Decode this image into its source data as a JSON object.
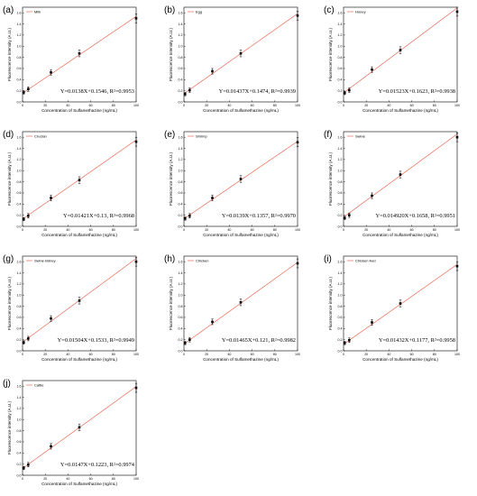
{
  "colors": {
    "fit_line": "#e8563f",
    "points": "#000000",
    "background": "#ffffff"
  },
  "chart_data": [
    {
      "type": "scatter",
      "letter": "(a)",
      "legend": "Milk",
      "xlabel": "Concentration of Sulfamethazine (ng/mL)",
      "ylabel": "Fluorescence intensity (A.U.)",
      "xlim": [
        0,
        100
      ],
      "ylim": [
        0,
        1.7
      ],
      "xticks": [
        "0",
        "20",
        "40",
        "60",
        "80",
        "100"
      ],
      "yticks": [
        "0.0",
        "0.2",
        "0.4",
        "0.6",
        "0.8",
        "1.0",
        "1.2",
        "1.4",
        "1.6"
      ],
      "x": [
        1,
        5,
        25,
        50,
        100
      ],
      "y": [
        0.17,
        0.23,
        0.53,
        0.87,
        1.5
      ],
      "err": [
        0.03,
        0.04,
        0.05,
        0.06,
        0.08
      ],
      "fit": {
        "slope": 0.0138,
        "intercept": 0.1546
      },
      "equation": "Y=0.0138X+0.1546, R²=0.9953",
      "grid": false,
      "legend_position": "top-left"
    },
    {
      "type": "scatter",
      "letter": "(b)",
      "legend": "Egg",
      "xlabel": "Concentration of Sulfamethazine (ng/mL)",
      "ylabel": "Fluorescence intensity (A.U.)",
      "xlim": [
        0,
        100
      ],
      "ylim": [
        0,
        1.7
      ],
      "xticks": [
        "0",
        "20",
        "40",
        "60",
        "80",
        "100"
      ],
      "yticks": [
        "0.0",
        "0.2",
        "0.4",
        "0.6",
        "0.8",
        "1.0",
        "1.2",
        "1.4",
        "1.6"
      ],
      "x": [
        1,
        5,
        25,
        50,
        100
      ],
      "y": [
        0.14,
        0.21,
        0.55,
        0.87,
        1.55
      ],
      "err": [
        0.03,
        0.04,
        0.05,
        0.06,
        0.08
      ],
      "fit": {
        "slope": 0.01437,
        "intercept": 0.1474
      },
      "equation": "Y=0.01437X+0.1474, R²=0.9939",
      "grid": false,
      "legend_position": "top-left"
    },
    {
      "type": "scatter",
      "letter": "(c)",
      "legend": "Honey",
      "xlabel": "Concentration of Sulfamethazine (ng/mL)",
      "ylabel": "Fluorescence intensity (A.U.)",
      "xlim": [
        0,
        100
      ],
      "ylim": [
        0,
        1.7
      ],
      "xticks": [
        "0",
        "20",
        "40",
        "60",
        "80",
        "100"
      ],
      "yticks": [
        "0.0",
        "0.2",
        "0.4",
        "0.6",
        "0.8",
        "1.0",
        "1.2",
        "1.4",
        "1.6"
      ],
      "x": [
        1,
        5,
        25,
        50,
        100
      ],
      "y": [
        0.16,
        0.21,
        0.58,
        0.93,
        1.62
      ],
      "err": [
        0.03,
        0.04,
        0.05,
        0.06,
        0.08
      ],
      "fit": {
        "slope": 0.01523,
        "intercept": 0.1623
      },
      "equation": "Y=0.01523X+0.1623, R²=0.9938",
      "grid": false,
      "legend_position": "top-left"
    },
    {
      "type": "scatter",
      "letter": "(d)",
      "legend": "Crucian",
      "xlabel": "Concentration of Sulfamethazine (ng/mL)",
      "ylabel": "Fluorescence intensity (A.U.)",
      "xlim": [
        0,
        100
      ],
      "ylim": [
        0,
        1.7
      ],
      "xticks": [
        "0",
        "20",
        "40",
        "60",
        "80",
        "100"
      ],
      "yticks": [
        "0.0",
        "0.2",
        "0.4",
        "0.6",
        "0.8",
        "1.0",
        "1.2",
        "1.4",
        "1.6"
      ],
      "x": [
        1,
        5,
        25,
        50,
        100
      ],
      "y": [
        0.13,
        0.19,
        0.51,
        0.83,
        1.52
      ],
      "err": [
        0.03,
        0.04,
        0.05,
        0.06,
        0.08
      ],
      "fit": {
        "slope": 0.01421,
        "intercept": 0.13
      },
      "equation": "Y=0.01421X+0.13, R²=0.9968",
      "grid": false,
      "legend_position": "top-left"
    },
    {
      "type": "scatter",
      "letter": "(e)",
      "legend": "Shrimp",
      "xlabel": "Concentration of Sulfamethazine (ng/mL)",
      "ylabel": "Fluorescence intensity (A.U.)",
      "xlim": [
        0,
        100
      ],
      "ylim": [
        0,
        1.7
      ],
      "xticks": [
        "0",
        "20",
        "40",
        "60",
        "80",
        "100"
      ],
      "yticks": [
        "0.0",
        "0.2",
        "0.4",
        "0.6",
        "0.8",
        "1.0",
        "1.2",
        "1.4",
        "1.6"
      ],
      "x": [
        1,
        5,
        25,
        50,
        100
      ],
      "y": [
        0.14,
        0.19,
        0.51,
        0.85,
        1.51
      ],
      "err": [
        0.03,
        0.04,
        0.05,
        0.06,
        0.08
      ],
      "fit": {
        "slope": 0.0139,
        "intercept": 0.1357
      },
      "equation": "Y=0.0139X+0.1357, R²=0.9970",
      "grid": false,
      "legend_position": "top-left"
    },
    {
      "type": "scatter",
      "letter": "(f)",
      "legend": "Swine",
      "xlabel": "Concentration of Sulfamethazine (ng/mL)",
      "ylabel": "Fluorescence intensity (A.U.)",
      "xlim": [
        0,
        100
      ],
      "ylim": [
        0,
        1.7
      ],
      "xticks": [
        "0",
        "20",
        "40",
        "60",
        "80",
        "100"
      ],
      "yticks": [
        "0.0",
        "0.2",
        "0.4",
        "0.6",
        "0.8",
        "1.0",
        "1.2",
        "1.4",
        "1.6"
      ],
      "x": [
        1,
        5,
        25,
        50,
        100
      ],
      "y": [
        0.15,
        0.2,
        0.55,
        0.93,
        1.6
      ],
      "err": [
        0.03,
        0.04,
        0.05,
        0.06,
        0.08
      ],
      "fit": {
        "slope": 0.01492,
        "intercept": 0.1658
      },
      "equation": "Y=0.014920X+0.1658, R²=0.9951",
      "grid": false,
      "legend_position": "top-left"
    },
    {
      "type": "scatter",
      "letter": "(g)",
      "legend": "Swine kidney",
      "xlabel": "Concentration of Sulfamethazine (ng/mL)",
      "ylabel": "Fluorescence intensity (A.U.)",
      "xlim": [
        0,
        100
      ],
      "ylim": [
        0,
        1.7
      ],
      "xticks": [
        "0",
        "20",
        "40",
        "60",
        "80",
        "100"
      ],
      "yticks": [
        "0.0",
        "0.2",
        "0.4",
        "0.6",
        "0.8",
        "1.0",
        "1.2",
        "1.4",
        "1.6"
      ],
      "x": [
        1,
        5,
        25,
        50,
        100
      ],
      "y": [
        0.15,
        0.22,
        0.58,
        0.9,
        1.6
      ],
      "err": [
        0.03,
        0.04,
        0.05,
        0.06,
        0.08
      ],
      "fit": {
        "slope": 0.01504,
        "intercept": 0.1533
      },
      "equation": "Y=0.01504X+0.1533, R²=0.9949",
      "grid": false,
      "legend_position": "top-left"
    },
    {
      "type": "scatter",
      "letter": "(h)",
      "legend": "Chicken",
      "xlabel": "Concentration of Sulfamethazine (ng/mL)",
      "ylabel": "Fluorescence intensity (A.U.)",
      "xlim": [
        0,
        100
      ],
      "ylim": [
        0,
        1.7
      ],
      "xticks": [
        "0",
        "20",
        "40",
        "60",
        "80",
        "100"
      ],
      "yticks": [
        "0.0",
        "0.2",
        "0.4",
        "0.6",
        "0.8",
        "1.0",
        "1.2",
        "1.4",
        "1.6"
      ],
      "x": [
        1,
        5,
        25,
        50,
        100
      ],
      "y": [
        0.14,
        0.2,
        0.52,
        0.87,
        1.57
      ],
      "err": [
        0.03,
        0.04,
        0.05,
        0.06,
        0.08
      ],
      "fit": {
        "slope": 0.01465,
        "intercept": 0.121
      },
      "equation": "Y=0.01465X+0.121, R²=0.9982",
      "grid": false,
      "legend_position": "top-left"
    },
    {
      "type": "scatter",
      "letter": "(i)",
      "legend": "Chicken liver",
      "xlabel": "Concentration of Sulfamethazine (ng/mL)",
      "ylabel": "Fluorescence intensity (A.U.)",
      "xlim": [
        0,
        100
      ],
      "ylim": [
        0,
        1.7
      ],
      "xticks": [
        "0",
        "20",
        "40",
        "60",
        "80",
        "100"
      ],
      "yticks": [
        "0.0",
        "0.2",
        "0.4",
        "0.6",
        "0.8",
        "1.0",
        "1.2",
        "1.4",
        "1.6"
      ],
      "x": [
        1,
        5,
        25,
        50,
        100
      ],
      "y": [
        0.14,
        0.19,
        0.51,
        0.85,
        1.52
      ],
      "err": [
        0.03,
        0.04,
        0.05,
        0.06,
        0.08
      ],
      "fit": {
        "slope": 0.01432,
        "intercept": 0.1177
      },
      "equation": "Y=0.01432X+0.1177, R²=0.9958",
      "grid": false,
      "legend_position": "top-left"
    },
    {
      "type": "scatter",
      "letter": "(j)",
      "legend": "Cattle",
      "xlabel": "Concentration of Sulfamethazine (ng/mL)",
      "ylabel": "Fluorescence intensity (A.U.)",
      "xlim": [
        0,
        100
      ],
      "ylim": [
        0,
        1.7
      ],
      "xticks": [
        "0",
        "20",
        "40",
        "60",
        "80",
        "100"
      ],
      "yticks": [
        "0.0",
        "0.2",
        "0.4",
        "0.6",
        "0.8",
        "1.0",
        "1.2",
        "1.4",
        "1.6"
      ],
      "x": [
        1,
        5,
        25,
        50,
        100
      ],
      "y": [
        0.13,
        0.19,
        0.52,
        0.86,
        1.57
      ],
      "err": [
        0.03,
        0.04,
        0.05,
        0.06,
        0.08
      ],
      "fit": {
        "slope": 0.0147,
        "intercept": 0.1223
      },
      "equation": "Y=0.0147X+0.1223, R²=0.9974",
      "grid": false,
      "legend_position": "top-left"
    }
  ]
}
